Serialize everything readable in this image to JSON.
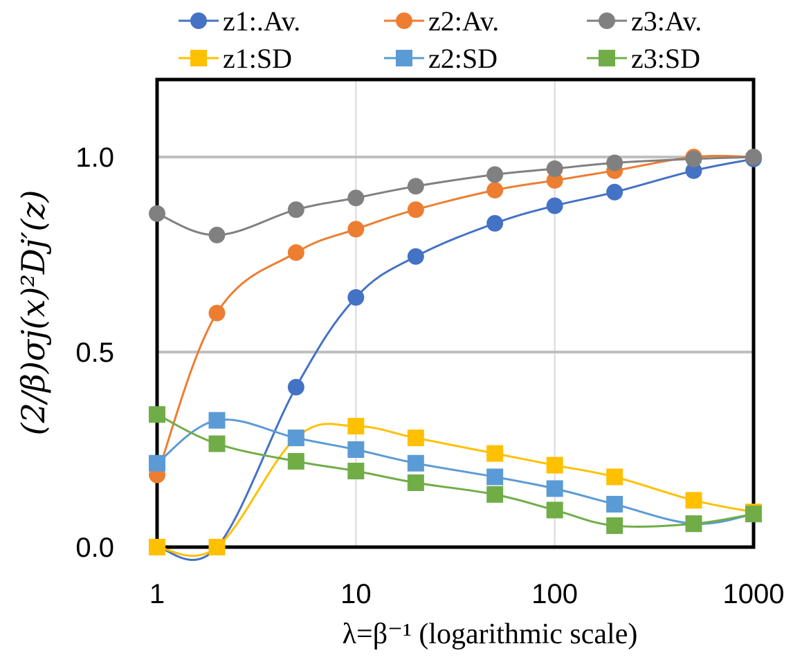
{
  "chart_data": {
    "type": "line",
    "title": "",
    "xlabel": "λ=β⁻¹ (logarithmic scale)",
    "ylabel": "(2/β)σj(x)²Dj′(z)",
    "xscale": "log",
    "xlim": [
      1,
      1000
    ],
    "ylim": [
      0,
      1.2
    ],
    "x_ticks": [
      1,
      10,
      100,
      1000
    ],
    "x_tick_labels": [
      "1",
      "10",
      "100",
      "1000"
    ],
    "y_ticks": [
      0.0,
      0.5,
      1.0
    ],
    "y_tick_labels": [
      "0.0",
      "0.5",
      "1.0"
    ],
    "grid": "vertical minor lines at decades, horizontal lines at 0.5 and 1.0",
    "legend_position": "top",
    "x": [
      1,
      2,
      5,
      10,
      20,
      50,
      100,
      200,
      500,
      1000
    ],
    "series": [
      {
        "name": "z1:.Av.",
        "color": "#4472C4",
        "marker": "circle",
        "values": [
          0.0,
          0.0,
          0.41,
          0.64,
          0.745,
          0.83,
          0.875,
          0.91,
          0.965,
          0.995
        ]
      },
      {
        "name": "z2:Av.",
        "color": "#ED7D31",
        "marker": "circle",
        "values": [
          0.185,
          0.6,
          0.755,
          0.815,
          0.865,
          0.915,
          0.94,
          0.965,
          1.0,
          1.0
        ]
      },
      {
        "name": "z3:Av.",
        "color": "#808080",
        "marker": "circle",
        "values": [
          0.855,
          0.8,
          0.865,
          0.895,
          0.925,
          0.955,
          0.97,
          0.985,
          0.995,
          1.0
        ]
      },
      {
        "name": "z1:SD",
        "color": "#FFC000",
        "marker": "square",
        "values": [
          0.0,
          0.0,
          0.28,
          0.31,
          0.28,
          0.24,
          0.21,
          0.18,
          0.12,
          0.09
        ]
      },
      {
        "name": "z2:SD",
        "color": "#5B9BD5",
        "marker": "square",
        "values": [
          0.215,
          0.325,
          0.28,
          0.25,
          0.215,
          0.18,
          0.15,
          0.11,
          0.06,
          0.085
        ]
      },
      {
        "name": "z3:SD",
        "color": "#70AD47",
        "marker": "square",
        "values": [
          0.34,
          0.265,
          0.22,
          0.195,
          0.165,
          0.135,
          0.095,
          0.055,
          0.06,
          0.085
        ]
      }
    ]
  }
}
